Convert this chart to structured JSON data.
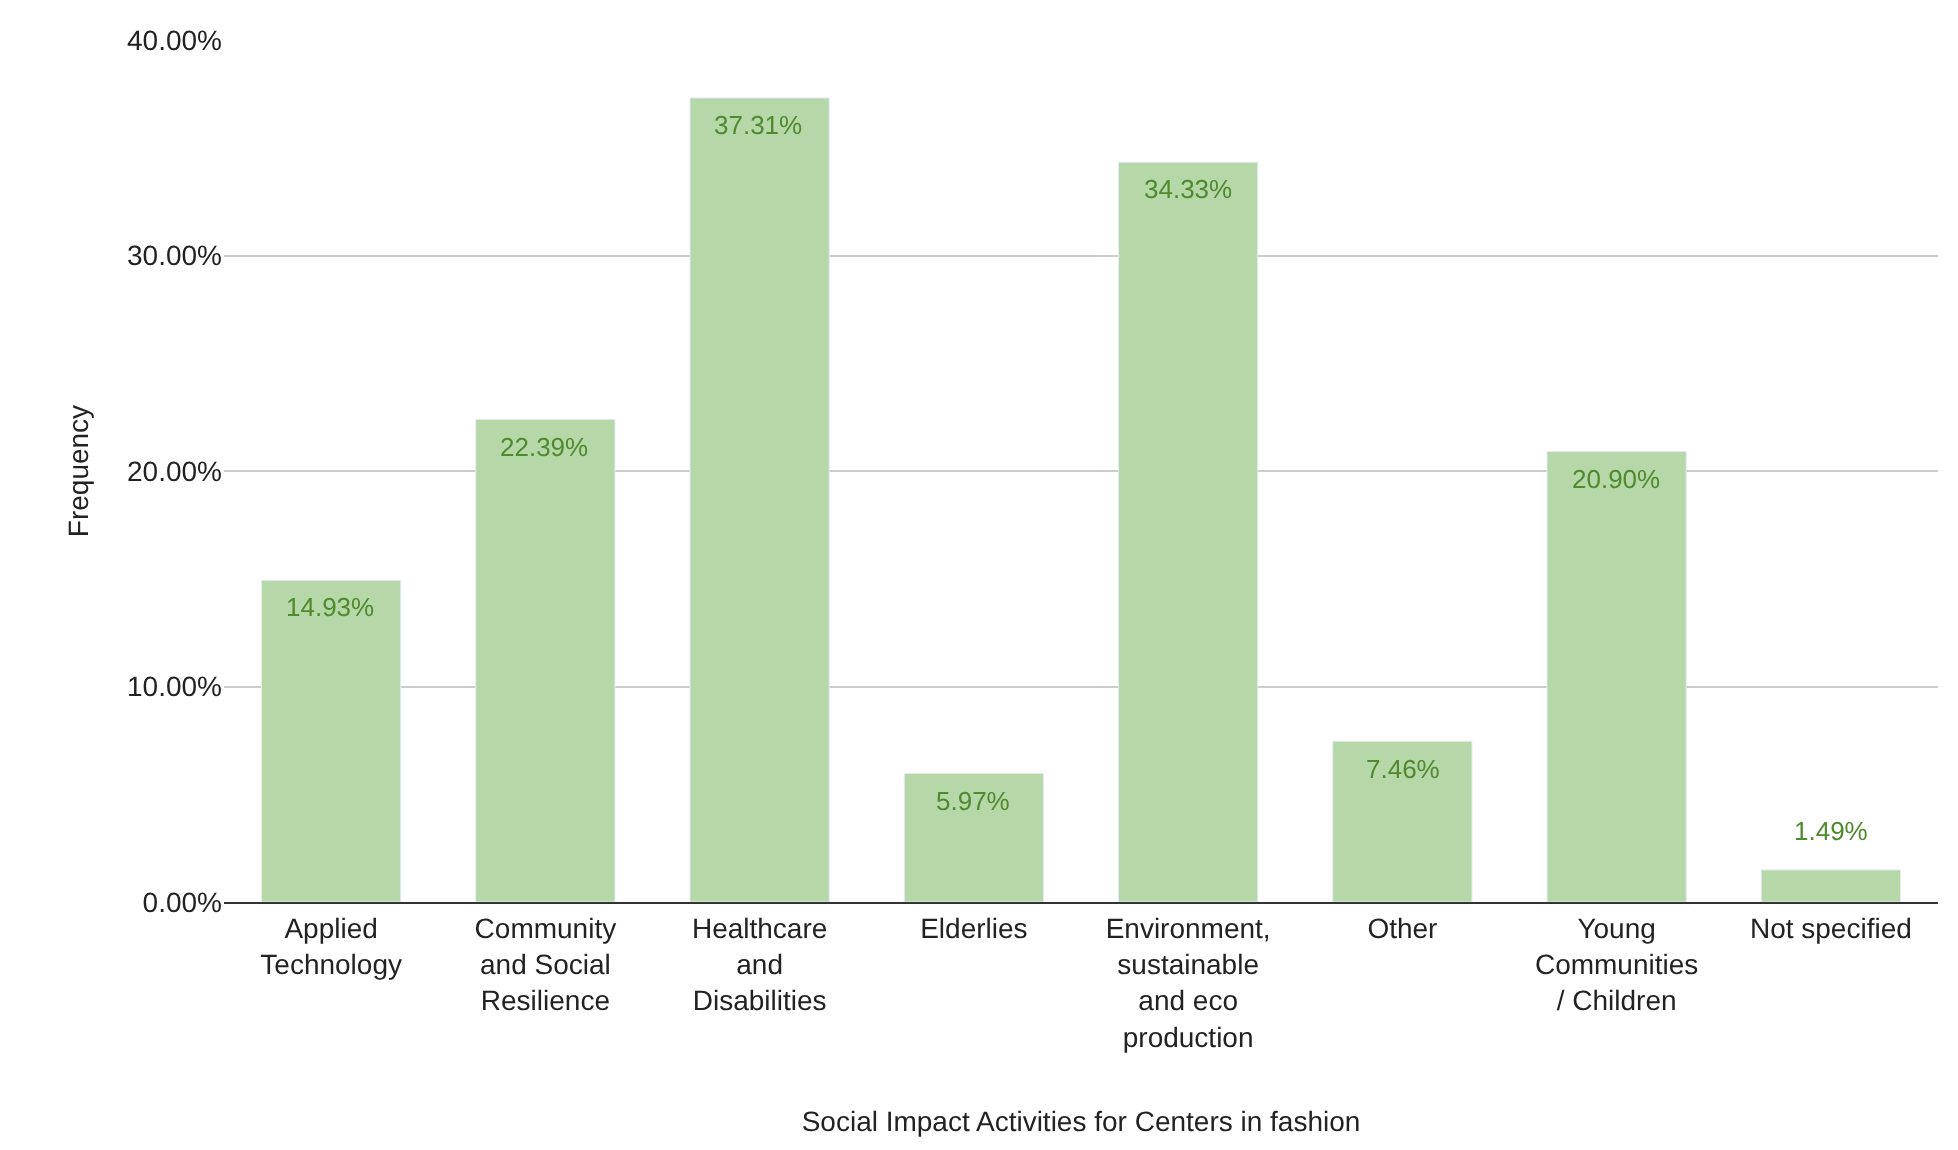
{
  "chart_data": {
    "type": "bar",
    "categories": [
      "Applied Technology",
      "Community and Social Resilience",
      "Healthcare and Disabilities",
      "Elderlies",
      "Environment, sustainable and eco production",
      "Other",
      "Young Communities / Children",
      "Not specified"
    ],
    "values": [
      14.93,
      22.39,
      37.31,
      5.97,
      34.33,
      7.46,
      20.9,
      1.49
    ],
    "value_labels": [
      "14.93%",
      "22.39%",
      "37.31%",
      "5.97%",
      "34.33%",
      "7.46%",
      "20.90%",
      "1.49%"
    ],
    "color": "#b6d7a8",
    "xlabel": "Social Impact Activities for Centers in fashion",
    "ylabel": "Frequency",
    "ylim": [
      0,
      40
    ],
    "yticks": [
      {
        "value": 0,
        "label": "0.00%"
      },
      {
        "value": 10,
        "label": "10.00%"
      },
      {
        "value": 20,
        "label": "20.00%"
      },
      {
        "value": 30,
        "label": "30.00%"
      },
      {
        "value": 40,
        "label": "40.00%"
      }
    ],
    "grid": "y"
  }
}
